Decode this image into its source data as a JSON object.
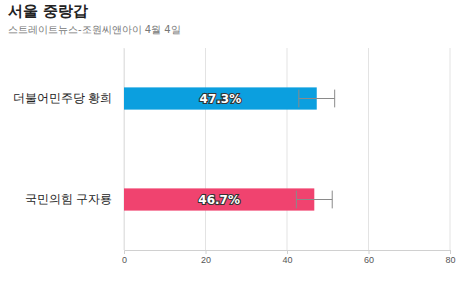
{
  "chart_data": {
    "type": "bar",
    "orientation": "horizontal",
    "title": "서울 중랑갑",
    "subtitle": "스트레이트뉴스-조원씨앤아이 4월 4일",
    "categories": [
      "더불어민주당 황희",
      "국민의힘 구자룡"
    ],
    "values": [
      47.3,
      46.7
    ],
    "value_labels": [
      "47.3%",
      "46.7%"
    ],
    "errors": [
      4.4,
      4.4
    ],
    "colors": [
      "#0b9fdf",
      "#f0436f"
    ],
    "xlim": [
      0,
      80
    ],
    "xticks": [
      0,
      20,
      40,
      60,
      80
    ],
    "grid": true,
    "data_labels": true
  }
}
